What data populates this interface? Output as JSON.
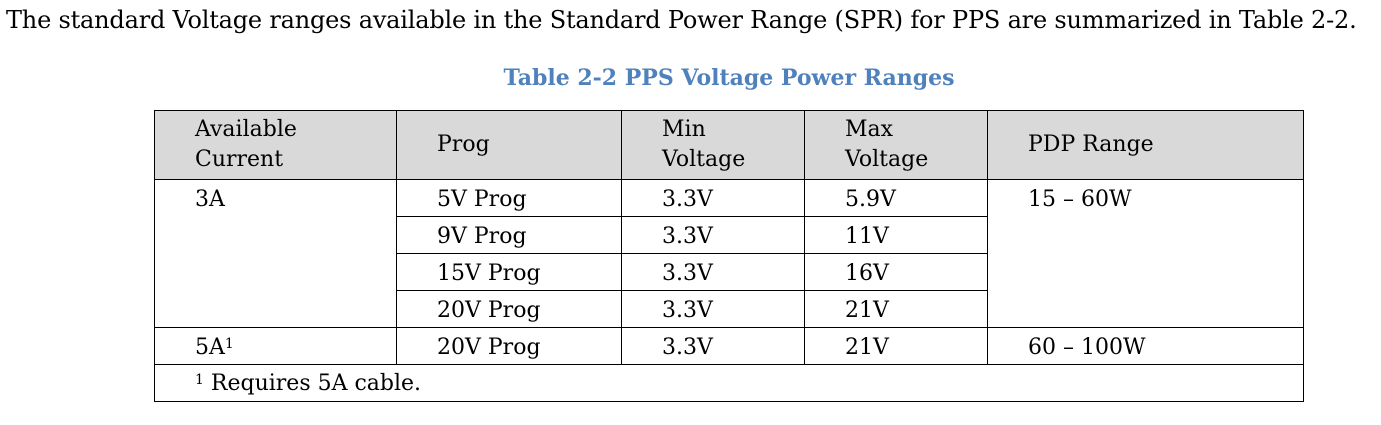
{
  "intro_text": "The standard Voltage ranges available in the Standard Power Range (SPR) for PPS are summarized in Table 2-2.",
  "caption": "Table 2-2 PPS Voltage Power Ranges",
  "colors": {
    "caption": "#4f81bd",
    "header_background": "#d9d9d9",
    "border": "#000000"
  },
  "table": {
    "headers": {
      "available_current": [
        "Available",
        "Current"
      ],
      "prog": "Prog",
      "min_voltage": [
        "Min",
        "Voltage"
      ],
      "max_voltage": [
        "Max",
        "Voltage"
      ],
      "pdp_range": "PDP Range"
    },
    "groups": [
      {
        "current": "3A",
        "current_footnote": "",
        "pdp_range": "15 – 60W",
        "rows": [
          {
            "prog": "5V Prog",
            "min": "3.3V",
            "max": "5.9V"
          },
          {
            "prog": "9V Prog",
            "min": "3.3V",
            "max": "11V"
          },
          {
            "prog": "15V Prog",
            "min": "3.3V",
            "max": "16V"
          },
          {
            "prog": "20V Prog",
            "min": "3.3V",
            "max": "21V"
          }
        ]
      },
      {
        "current": "5A",
        "current_footnote": "1",
        "pdp_range": "60 – 100W",
        "rows": [
          {
            "prog": "20V Prog",
            "min": "3.3V",
            "max": "21V"
          }
        ]
      }
    ],
    "footnote": {
      "marker": "1",
      "text": " Requires 5A cable."
    }
  }
}
